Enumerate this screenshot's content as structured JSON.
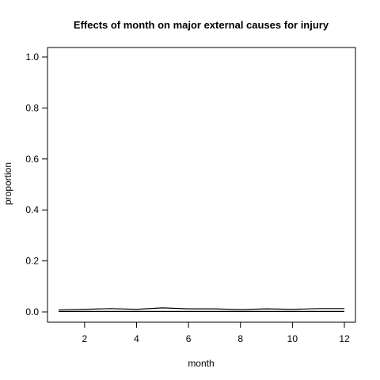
{
  "chart_data": {
    "type": "line",
    "title": "Effects of month on major external causes for injury",
    "xlabel": "month",
    "ylabel": "proportion",
    "xlim": [
      1,
      12
    ],
    "ylim": [
      0,
      1
    ],
    "x_ticks": [
      2,
      4,
      6,
      8,
      10,
      12
    ],
    "y_ticks": [
      0.0,
      0.2,
      0.4,
      0.6,
      0.8,
      1.0
    ],
    "y_tick_labels": [
      "0.0",
      "0.2",
      "0.4",
      "0.6",
      "0.8",
      "1.0"
    ],
    "grid": false,
    "legend": "none",
    "line_color": "#000000",
    "x": [
      1,
      2,
      3,
      4,
      5,
      6,
      7,
      8,
      9,
      10,
      11,
      12
    ],
    "series": [
      {
        "values": [
          0.002,
          0.002,
          0.002,
          0.002,
          0.002,
          0.002,
          0.002,
          0.002,
          0.002,
          0.002,
          0.002,
          0.002
        ]
      },
      {
        "values": [
          0.008,
          0.01,
          0.013,
          0.01,
          0.016,
          0.012,
          0.012,
          0.009,
          0.012,
          0.01,
          0.013,
          0.013
        ]
      }
    ]
  }
}
